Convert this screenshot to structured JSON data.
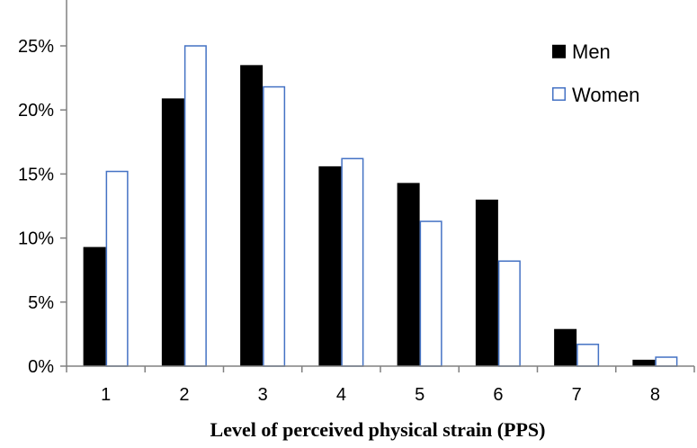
{
  "chart_data": {
    "type": "bar",
    "title": "",
    "xlabel": "Level of perceived physical strain  (PPS)",
    "ylabel": "",
    "categories": [
      "1",
      "2",
      "3",
      "4",
      "5",
      "6",
      "7",
      "8"
    ],
    "series": [
      {
        "name": "Men",
        "values": [
          9.3,
          20.9,
          23.5,
          15.6,
          14.3,
          13.0,
          2.9,
          0.5
        ],
        "color": "#000000",
        "style": "filled"
      },
      {
        "name": "Women",
        "values": [
          15.2,
          25.0,
          21.8,
          16.2,
          11.3,
          8.2,
          1.7,
          0.7
        ],
        "color": "#4472C4",
        "style": "outline"
      }
    ],
    "ylim": [
      0,
      25
    ],
    "yticks": [
      0,
      5,
      10,
      15,
      20,
      25
    ],
    "ytick_format": "percent",
    "grid": false,
    "legend_position": "top-right"
  }
}
